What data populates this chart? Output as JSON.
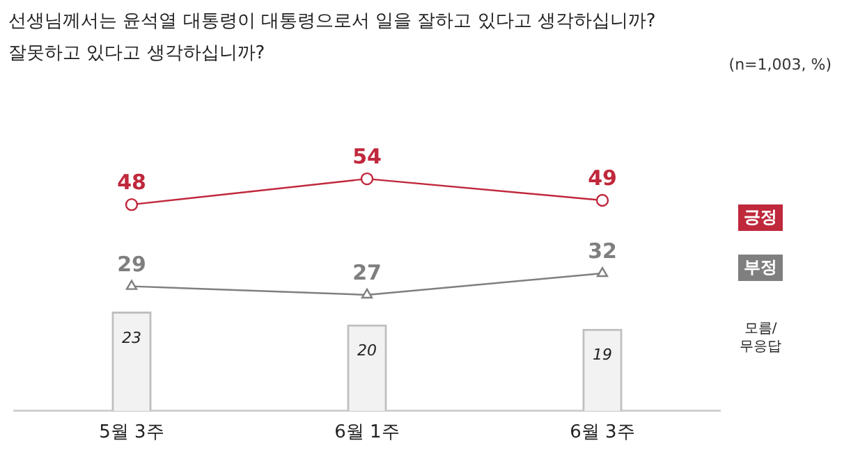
{
  "chart_data": {
    "type": "line",
    "title": "선생님께서는 윤석열 대통령이 대통령으로서 일을 잘하고 있다고 생각하십니까?\n잘못하고 있다고 생각하십니까?",
    "annotations": [
      "(n=1,003,  %)"
    ],
    "categories": [
      "5월 3주",
      "6월 1주",
      "6월 3주"
    ],
    "series": [
      {
        "name": "긍정",
        "color": "#c0283c",
        "marker": "circle",
        "values": [
          48,
          54,
          49
        ]
      },
      {
        "name": "부정",
        "color": "#7f7f7f",
        "marker": "triangle",
        "values": [
          29,
          27,
          32
        ]
      },
      {
        "name": "모름/\n무응답",
        "type": "bar",
        "color": "#f2f2f2",
        "values": [
          23,
          20,
          19
        ]
      }
    ],
    "tick_labels": "x",
    "grid": false,
    "legend": "right",
    "data_labels": true
  }
}
